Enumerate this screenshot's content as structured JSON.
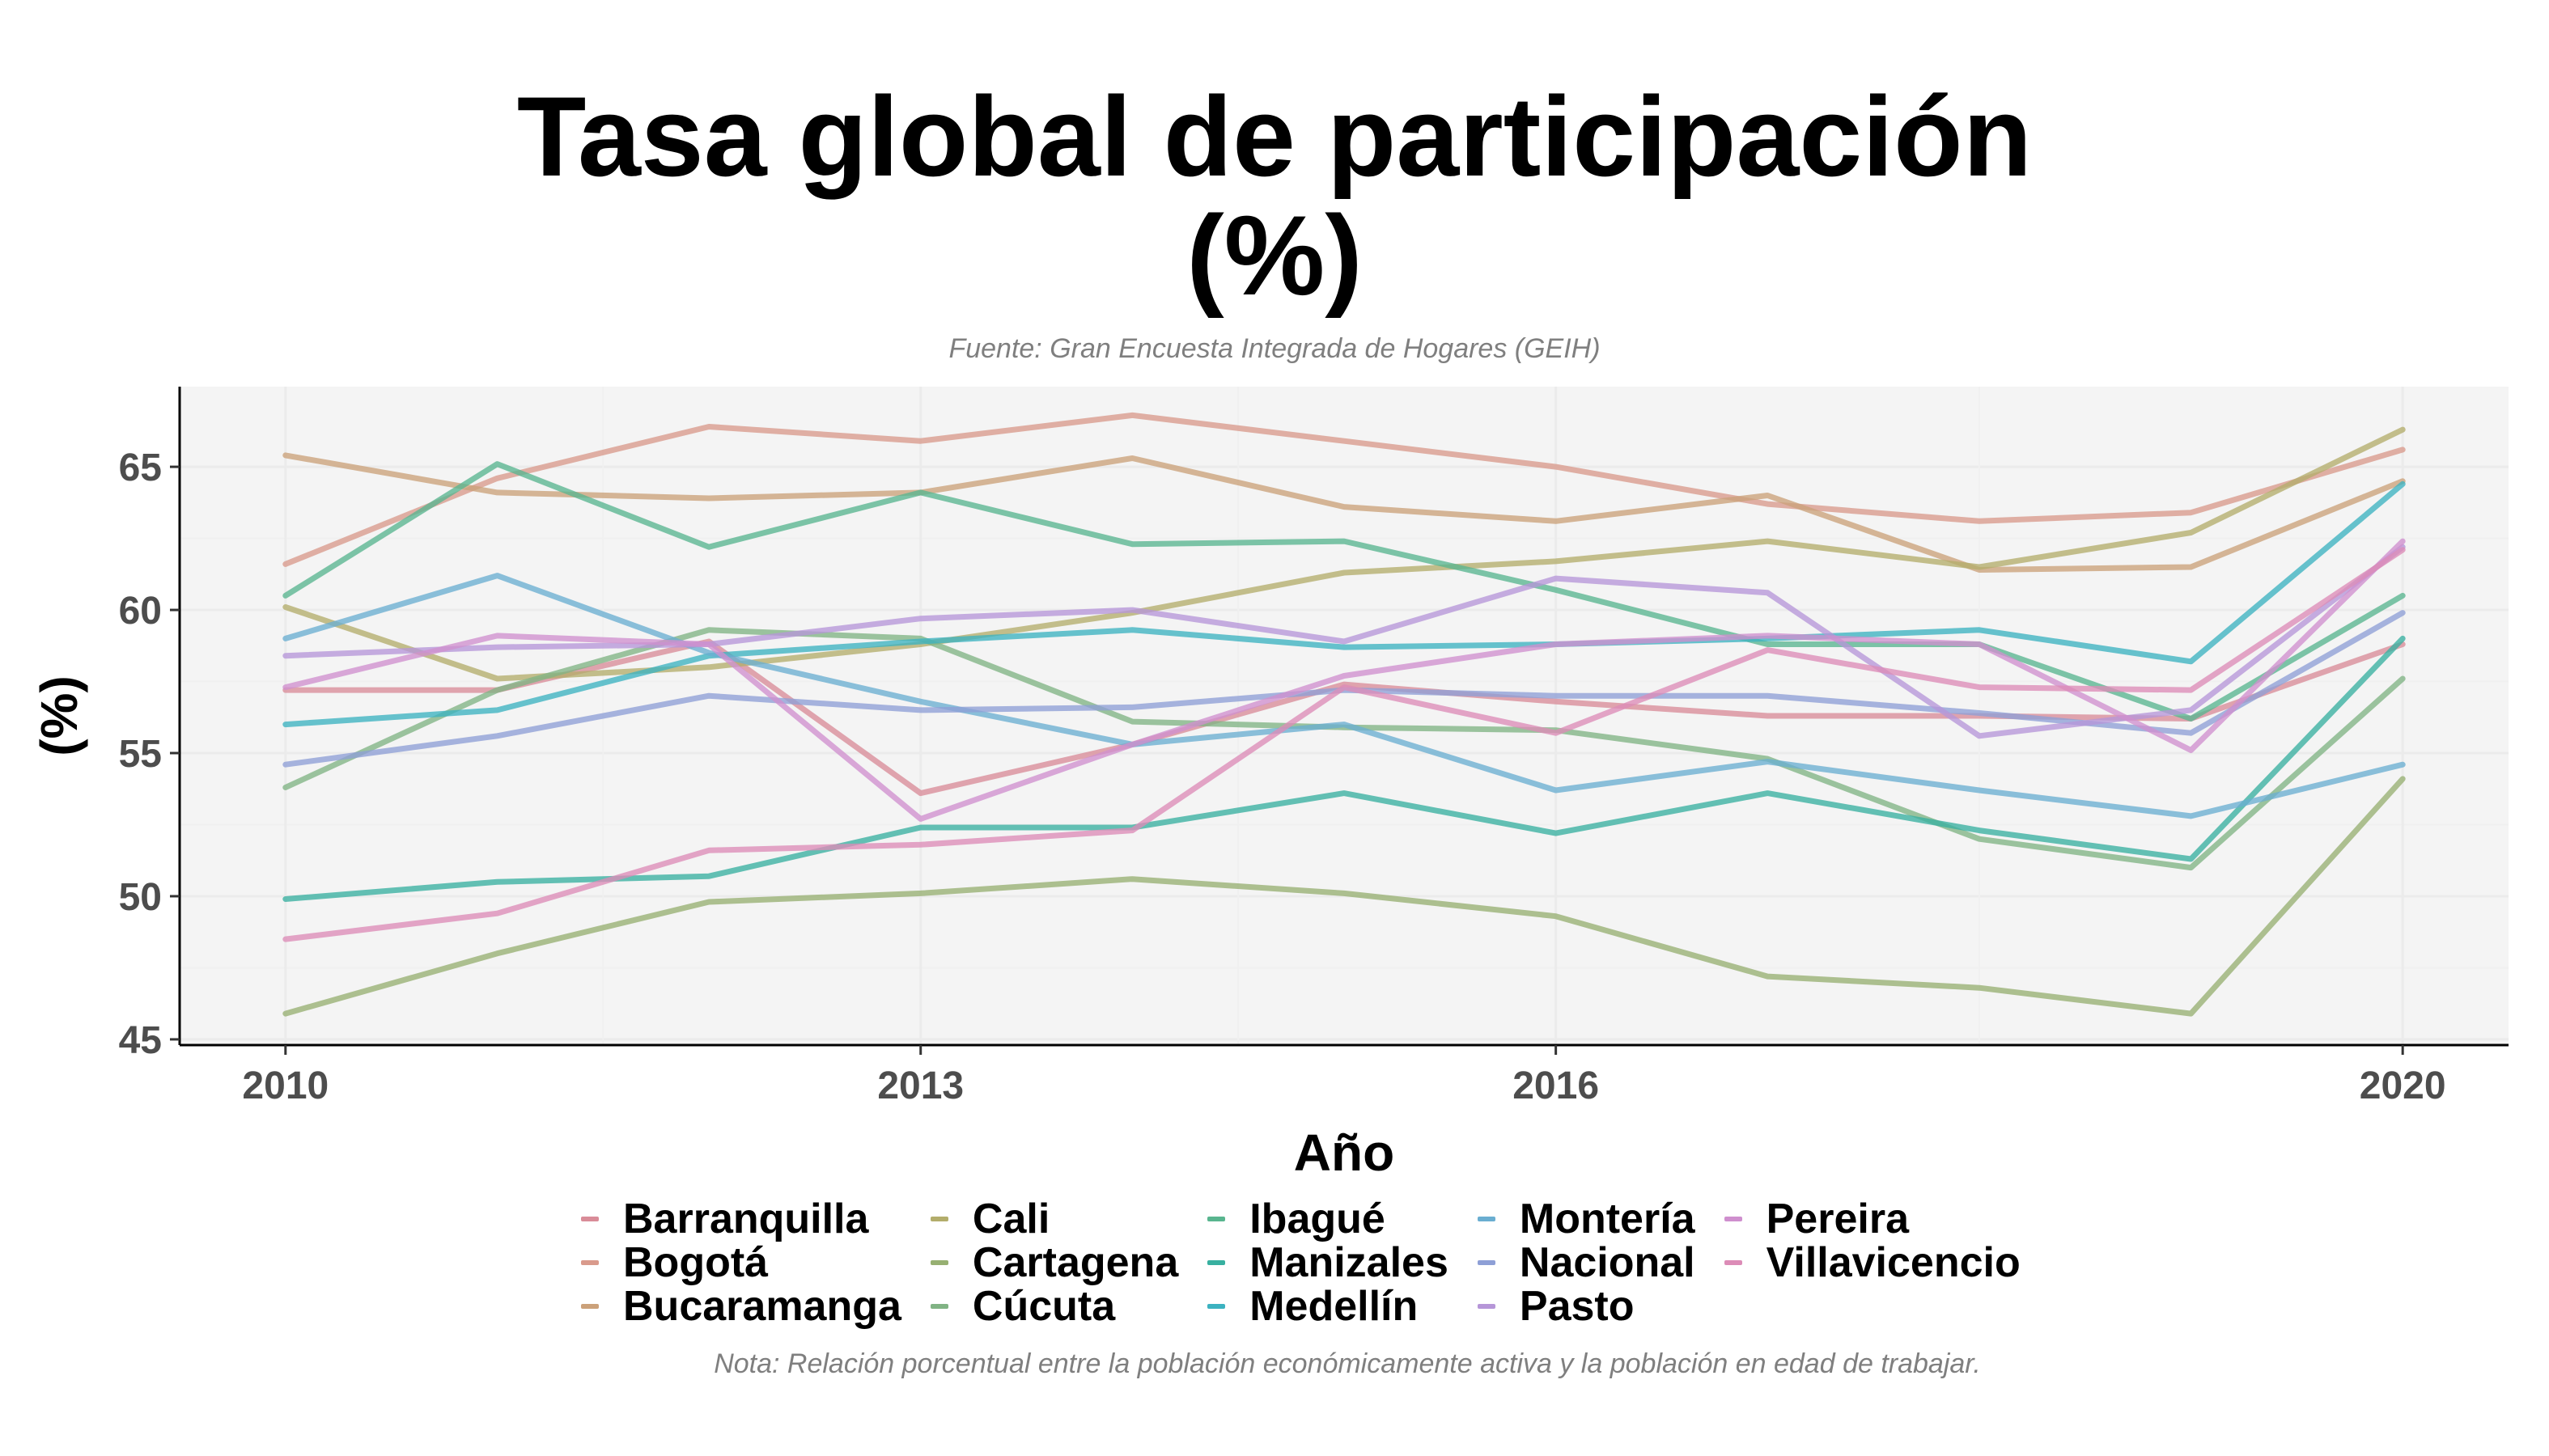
{
  "chart_data": {
    "type": "line",
    "title_line1": "Tasa global de participación",
    "title_line2": "(%)",
    "subtitle": "Fuente: Gran Encuesta Integrada de Hogares (GEIH)",
    "xlabel": "Año",
    "ylabel": "(%)",
    "note": "Nota: Relación porcentual entre la población económicamente activa y la población en edad de trabajar.",
    "x": [
      2010,
      2011,
      2012,
      2013,
      2014,
      2015,
      2016,
      2017,
      2018,
      2019,
      2020
    ],
    "xticks": [
      2010,
      2013,
      2016,
      2020
    ],
    "yticks": [
      45,
      50,
      55,
      60,
      65
    ],
    "xlim": [
      2009.5,
      2020.5
    ],
    "ylim": [
      44.8,
      67.8
    ],
    "grid": true,
    "legend_position": "bottom",
    "series": [
      {
        "name": "Barranquilla",
        "color": "#d98c98",
        "values": [
          57.2,
          57.2,
          58.9,
          53.6,
          55.3,
          57.4,
          56.8,
          56.3,
          56.3,
          56.2,
          58.8
        ]
      },
      {
        "name": "Bogotá",
        "color": "#d99a8c",
        "values": [
          61.6,
          64.6,
          66.4,
          65.9,
          66.8,
          65.9,
          65.0,
          63.7,
          63.1,
          63.4,
          65.6
        ]
      },
      {
        "name": "Bucaramanga",
        "color": "#cba17a",
        "values": [
          65.4,
          64.1,
          63.9,
          64.1,
          65.3,
          63.6,
          63.1,
          64.0,
          61.4,
          61.5,
          64.5
        ]
      },
      {
        "name": "Cali",
        "color": "#b3ad6b",
        "values": [
          60.1,
          57.6,
          58.0,
          58.8,
          59.9,
          61.3,
          61.7,
          62.4,
          61.5,
          62.7,
          66.3
        ]
      },
      {
        "name": "Cartagena",
        "color": "#97b072",
        "values": [
          45.9,
          48.0,
          49.8,
          50.1,
          50.6,
          50.1,
          49.3,
          47.2,
          46.8,
          45.9,
          54.1
        ]
      },
      {
        "name": "Cúcuta",
        "color": "#80b384",
        "values": [
          53.8,
          57.2,
          59.3,
          59.0,
          56.1,
          55.9,
          55.8,
          54.8,
          52.0,
          51.0,
          57.6
        ]
      },
      {
        "name": "Ibagué",
        "color": "#59b58f",
        "values": [
          60.5,
          65.1,
          62.2,
          64.1,
          62.3,
          62.4,
          60.7,
          58.8,
          58.8,
          56.2,
          60.5
        ]
      },
      {
        "name": "Manizales",
        "color": "#38b0a0",
        "values": [
          49.9,
          50.5,
          50.7,
          52.4,
          52.4,
          53.6,
          52.2,
          53.6,
          52.3,
          51.3,
          59.0
        ]
      },
      {
        "name": "Medellín",
        "color": "#3cb2c0",
        "values": [
          56.0,
          56.5,
          58.4,
          58.9,
          59.3,
          58.7,
          58.8,
          59.0,
          59.3,
          58.2,
          64.4
        ]
      },
      {
        "name": "Montería",
        "color": "#6aaed1",
        "values": [
          59.0,
          61.2,
          58.5,
          56.8,
          55.3,
          56.0,
          53.7,
          54.7,
          53.7,
          52.8,
          54.6
        ]
      },
      {
        "name": "Nacional",
        "color": "#8e9fd6",
        "values": [
          54.6,
          55.6,
          57.0,
          56.5,
          56.6,
          57.2,
          57.0,
          57.0,
          56.4,
          55.7,
          59.9
        ]
      },
      {
        "name": "Pasto",
        "color": "#b696d8",
        "values": [
          58.4,
          58.7,
          58.8,
          59.7,
          60.0,
          58.9,
          61.1,
          60.6,
          55.6,
          56.5,
          62.2
        ]
      },
      {
        "name": "Pereira",
        "color": "#cf8fce",
        "values": [
          57.3,
          59.1,
          58.8,
          52.7,
          55.3,
          57.7,
          58.8,
          59.1,
          58.8,
          55.1,
          62.4
        ]
      },
      {
        "name": "Villavicencio",
        "color": "#dc8cb7",
        "values": [
          48.5,
          49.4,
          51.6,
          51.8,
          52.3,
          57.3,
          55.7,
          58.6,
          57.3,
          57.2,
          62.1
        ]
      }
    ]
  }
}
